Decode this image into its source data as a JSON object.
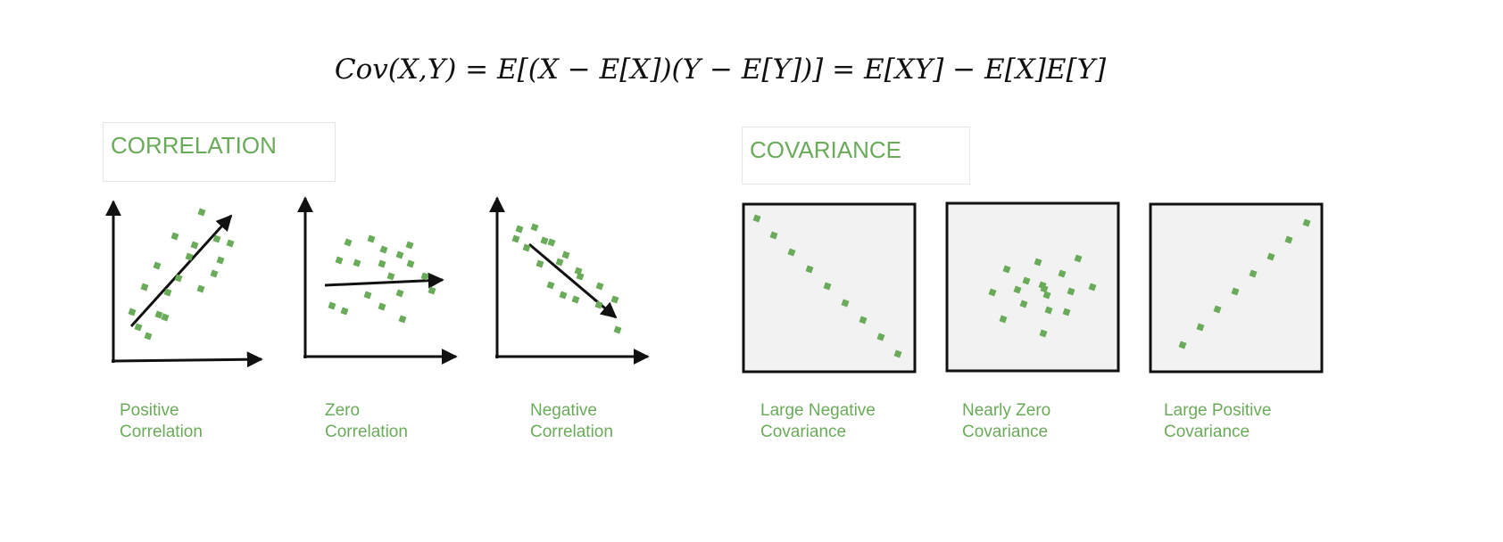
{
  "formula": "Cov(X,Y) = E[(X − E[X])(Y − E[Y])] = E[XY] − E[X]E[Y]",
  "correlation": {
    "title": "CORRELATION",
    "panels": [
      {
        "line1": "Positive",
        "line2": "Correlation"
      },
      {
        "line1": "Zero",
        "line2": "Correlation"
      },
      {
        "line1": "Negative",
        "line2": "Correlation"
      }
    ]
  },
  "covariance": {
    "title": "COVARIANCE",
    "panels": [
      {
        "line1": "Large Negative",
        "line2": "Covariance"
      },
      {
        "line1": "Nearly Zero",
        "line2": "Covariance"
      },
      {
        "line1": "Large Positive",
        "line2": "Covariance"
      }
    ]
  },
  "colors": {
    "point": "#6aab5a",
    "text": "#6aab5a",
    "axis": "#111111",
    "panel_fill": "#f2f2f2"
  }
}
